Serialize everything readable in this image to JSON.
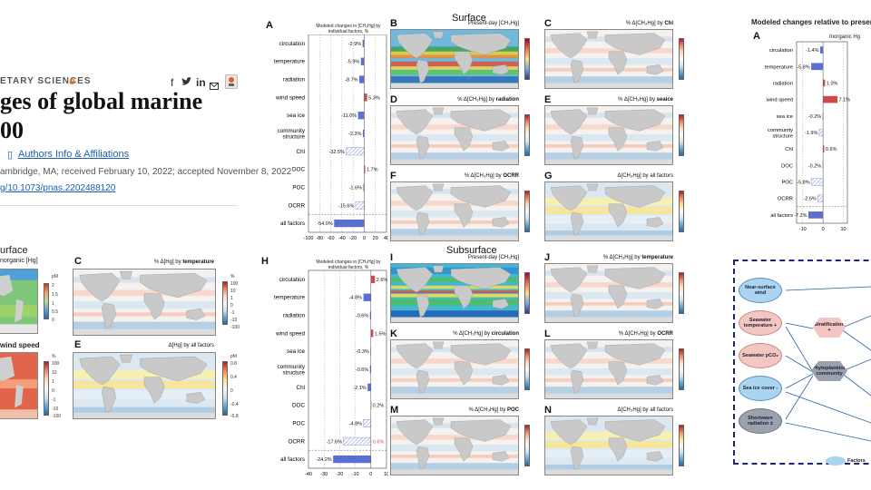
{
  "page": {
    "kicker": "ETARY SCIENCES",
    "title_lines": [
      "ges of global marine",
      "00"
    ],
    "authors_link": "Authors Info & Affiliations",
    "meta_line": "ambridge, MA; received February 10, 2022; accepted November 8, 2022",
    "doi": "g/10.1073/pnas.2202488120",
    "share_icons": [
      "facebook-icon",
      "twitter-icon",
      "linkedin-icon",
      "email-icon",
      "bookmark-icon"
    ]
  },
  "left_figure": {
    "title_fragment": "urface",
    "subtitle_fragment": "norganic [Hg]",
    "panel_C": {
      "label": "C",
      "title_pre": "% Δ[Hg] by ",
      "title_bold": "temperature"
    },
    "panel_E": {
      "label": "E",
      "title": "Δ[Hg] by all factors"
    },
    "wind_fragment": "wind speed",
    "cbar_a_ticks": [
      "pM",
      "2",
      "1.5",
      "1",
      "0.5",
      "0"
    ],
    "cbar_b_ticks": [
      "%",
      "100",
      "10",
      "1",
      "0",
      "-1",
      "-10",
      "-100"
    ],
    "cbar_c_ticks": [
      "%",
      "100",
      "10",
      "1",
      "0",
      "-1",
      "-10",
      "-100"
    ],
    "cbar_d_ticks": [
      "pM",
      "0.8",
      "0.4",
      "0",
      "-0.4",
      "-0.8"
    ]
  },
  "fig_top": {
    "panel_A": {
      "label": "A",
      "header": "Modeled changes in [CH₃Hg] by individual factors, %",
      "rows": [
        "circulation",
        "temperature",
        "radiation",
        "wind speed",
        "sea ice",
        "community structure",
        "Chl",
        "DOC",
        "POC",
        "OCRR",
        "all factors"
      ],
      "values": [
        -2.9,
        -5.9,
        -8.7,
        5.3,
        -11.0,
        -2.3,
        -32.5,
        1.7,
        -1.6,
        -15.6,
        -54.0
      ],
      "value_labels": [
        "-2.9%",
        "-5.9%",
        "-8.7%",
        "5.3%",
        "-11.0%",
        "-2.3%",
        "-32.5%",
        "1.7%",
        "-1.6%",
        "-15.6%",
        "-54.0%"
      ],
      "hatched": [
        false,
        false,
        false,
        false,
        false,
        false,
        true,
        false,
        false,
        true,
        false
      ],
      "xticks": [
        "-100",
        "-80",
        "-60",
        "-40",
        "-20",
        "0",
        "20",
        "40"
      ],
      "xlim": [
        -100,
        40
      ]
    },
    "section_title": "Surface",
    "maps": [
      {
        "label": "B",
        "title_pre": "Present-day [CH₃Hg]",
        "title_bold": "",
        "type": "abs"
      },
      {
        "label": "C",
        "title_pre": "% Δ[CH₃Hg] by ",
        "title_bold": "Chl",
        "type": "pct"
      },
      {
        "label": "D",
        "title_pre": "% Δ[CH₃Hg] by ",
        "title_bold": "radiation",
        "type": "pct"
      },
      {
        "label": "E",
        "title_pre": "% Δ[CH₃Hg] by ",
        "title_bold": "seaice",
        "type": "pct"
      },
      {
        "label": "F",
        "title_pre": "% Δ[CH₃Hg] by ",
        "title_bold": "OCRR",
        "type": "pct"
      },
      {
        "label": "G",
        "title_pre": "Δ[CH₃Hg] by all factors",
        "title_bold": "",
        "type": "delta"
      }
    ]
  },
  "fig_bottom": {
    "panel_H": {
      "label": "H",
      "header": "Modeled changes in [CH₃Hg] by individual factors, %",
      "rows": [
        "circulation",
        "temperature",
        "radiation",
        "wind speed",
        "sea ice",
        "community structure",
        "Chl",
        "DOC",
        "POC",
        "OCRR",
        "all factors"
      ],
      "values": [
        2.6,
        -4.8,
        -0.6,
        1.5,
        -0.3,
        -0.6,
        -2.1,
        0.2,
        -4.8,
        -17.6,
        -24.2
      ],
      "value_labels": [
        "2.6%",
        "-4.8%",
        "-0.6%",
        "1.5%",
        "-0.3%",
        "-0.6%",
        "-2.1%",
        "0.2%",
        "-4.8%",
        "-17.6%",
        "-24.2%"
      ],
      "hatched": [
        false,
        false,
        false,
        false,
        false,
        false,
        false,
        false,
        true,
        true,
        false
      ],
      "extra_label": "0.6%",
      "xticks": [
        "-40",
        "-30",
        "-20",
        "-10",
        "0",
        "10"
      ],
      "xlim": [
        -40,
        10
      ]
    },
    "section_title": "Subsurface",
    "maps": [
      {
        "label": "I",
        "title_pre": "Present-day [CH₃Hg]",
        "title_bold": "",
        "type": "sub"
      },
      {
        "label": "J",
        "title_pre": "% Δ[CH₃Hg] by ",
        "title_bold": "temperature",
        "type": "pct"
      },
      {
        "label": "K",
        "title_pre": "% Δ[CH₃Hg] by ",
        "title_bold": "circulation",
        "type": "pct"
      },
      {
        "label": "L",
        "title_pre": "% Δ[CH₃Hg] by ",
        "title_bold": "OCRR",
        "type": "pct"
      },
      {
        "label": "M",
        "title_pre": "% Δ[CH₃Hg] by ",
        "title_bold": "POC",
        "type": "pct"
      },
      {
        "label": "N",
        "title_pre": "Δ[CH₃Hg] by all factors",
        "title_bold": "",
        "type": "delta"
      }
    ]
  },
  "right_figure": {
    "title": "Modeled changes relative to present-da",
    "panel_label": "A",
    "column_title": "Inorganic Hg",
    "rows": [
      "circulation",
      "temperature",
      "radiation",
      "wind speed",
      "sea ice",
      "community structure",
      "Chl",
      "DOC",
      "POC",
      "OCRR",
      "all factors"
    ],
    "values": [
      -1.4,
      -5.8,
      1.0,
      7.1,
      -0.2,
      -1.9,
      0.6,
      -0.2,
      -5.8,
      -2.6,
      -7.2
    ],
    "value_labels": [
      "-1.4%",
      "-5.8%",
      "1.0%",
      "7.1%",
      "-0.2%",
      "-1.9%",
      "0.6%",
      "-0.2%",
      "-5.8%",
      "-2.6%",
      "-7.2%"
    ],
    "hatched": [
      false,
      false,
      false,
      false,
      false,
      true,
      false,
      false,
      true,
      true,
      false
    ],
    "xticks": [
      "-10",
      "0",
      "10"
    ],
    "xlim": [
      -13,
      12
    ]
  },
  "diagram": {
    "nodes": [
      "Near-surface wind",
      "Seawater temperature +",
      "Seawater pCO₂",
      "Sea ice cover -",
      "Shortwave radiation ±",
      "Stratification +",
      "Phytoplankton community"
    ],
    "legend": "Factors"
  },
  "colors": {
    "bar_blue": "#5b6fd0",
    "bar_red": "#d04a4a",
    "hatch": "#8f9ad8",
    "diagram_border": "#1a237e",
    "node_blue": "#a9d5f0",
    "node_red": "#f4c6c2",
    "node_gray": "#9aa2b0"
  }
}
